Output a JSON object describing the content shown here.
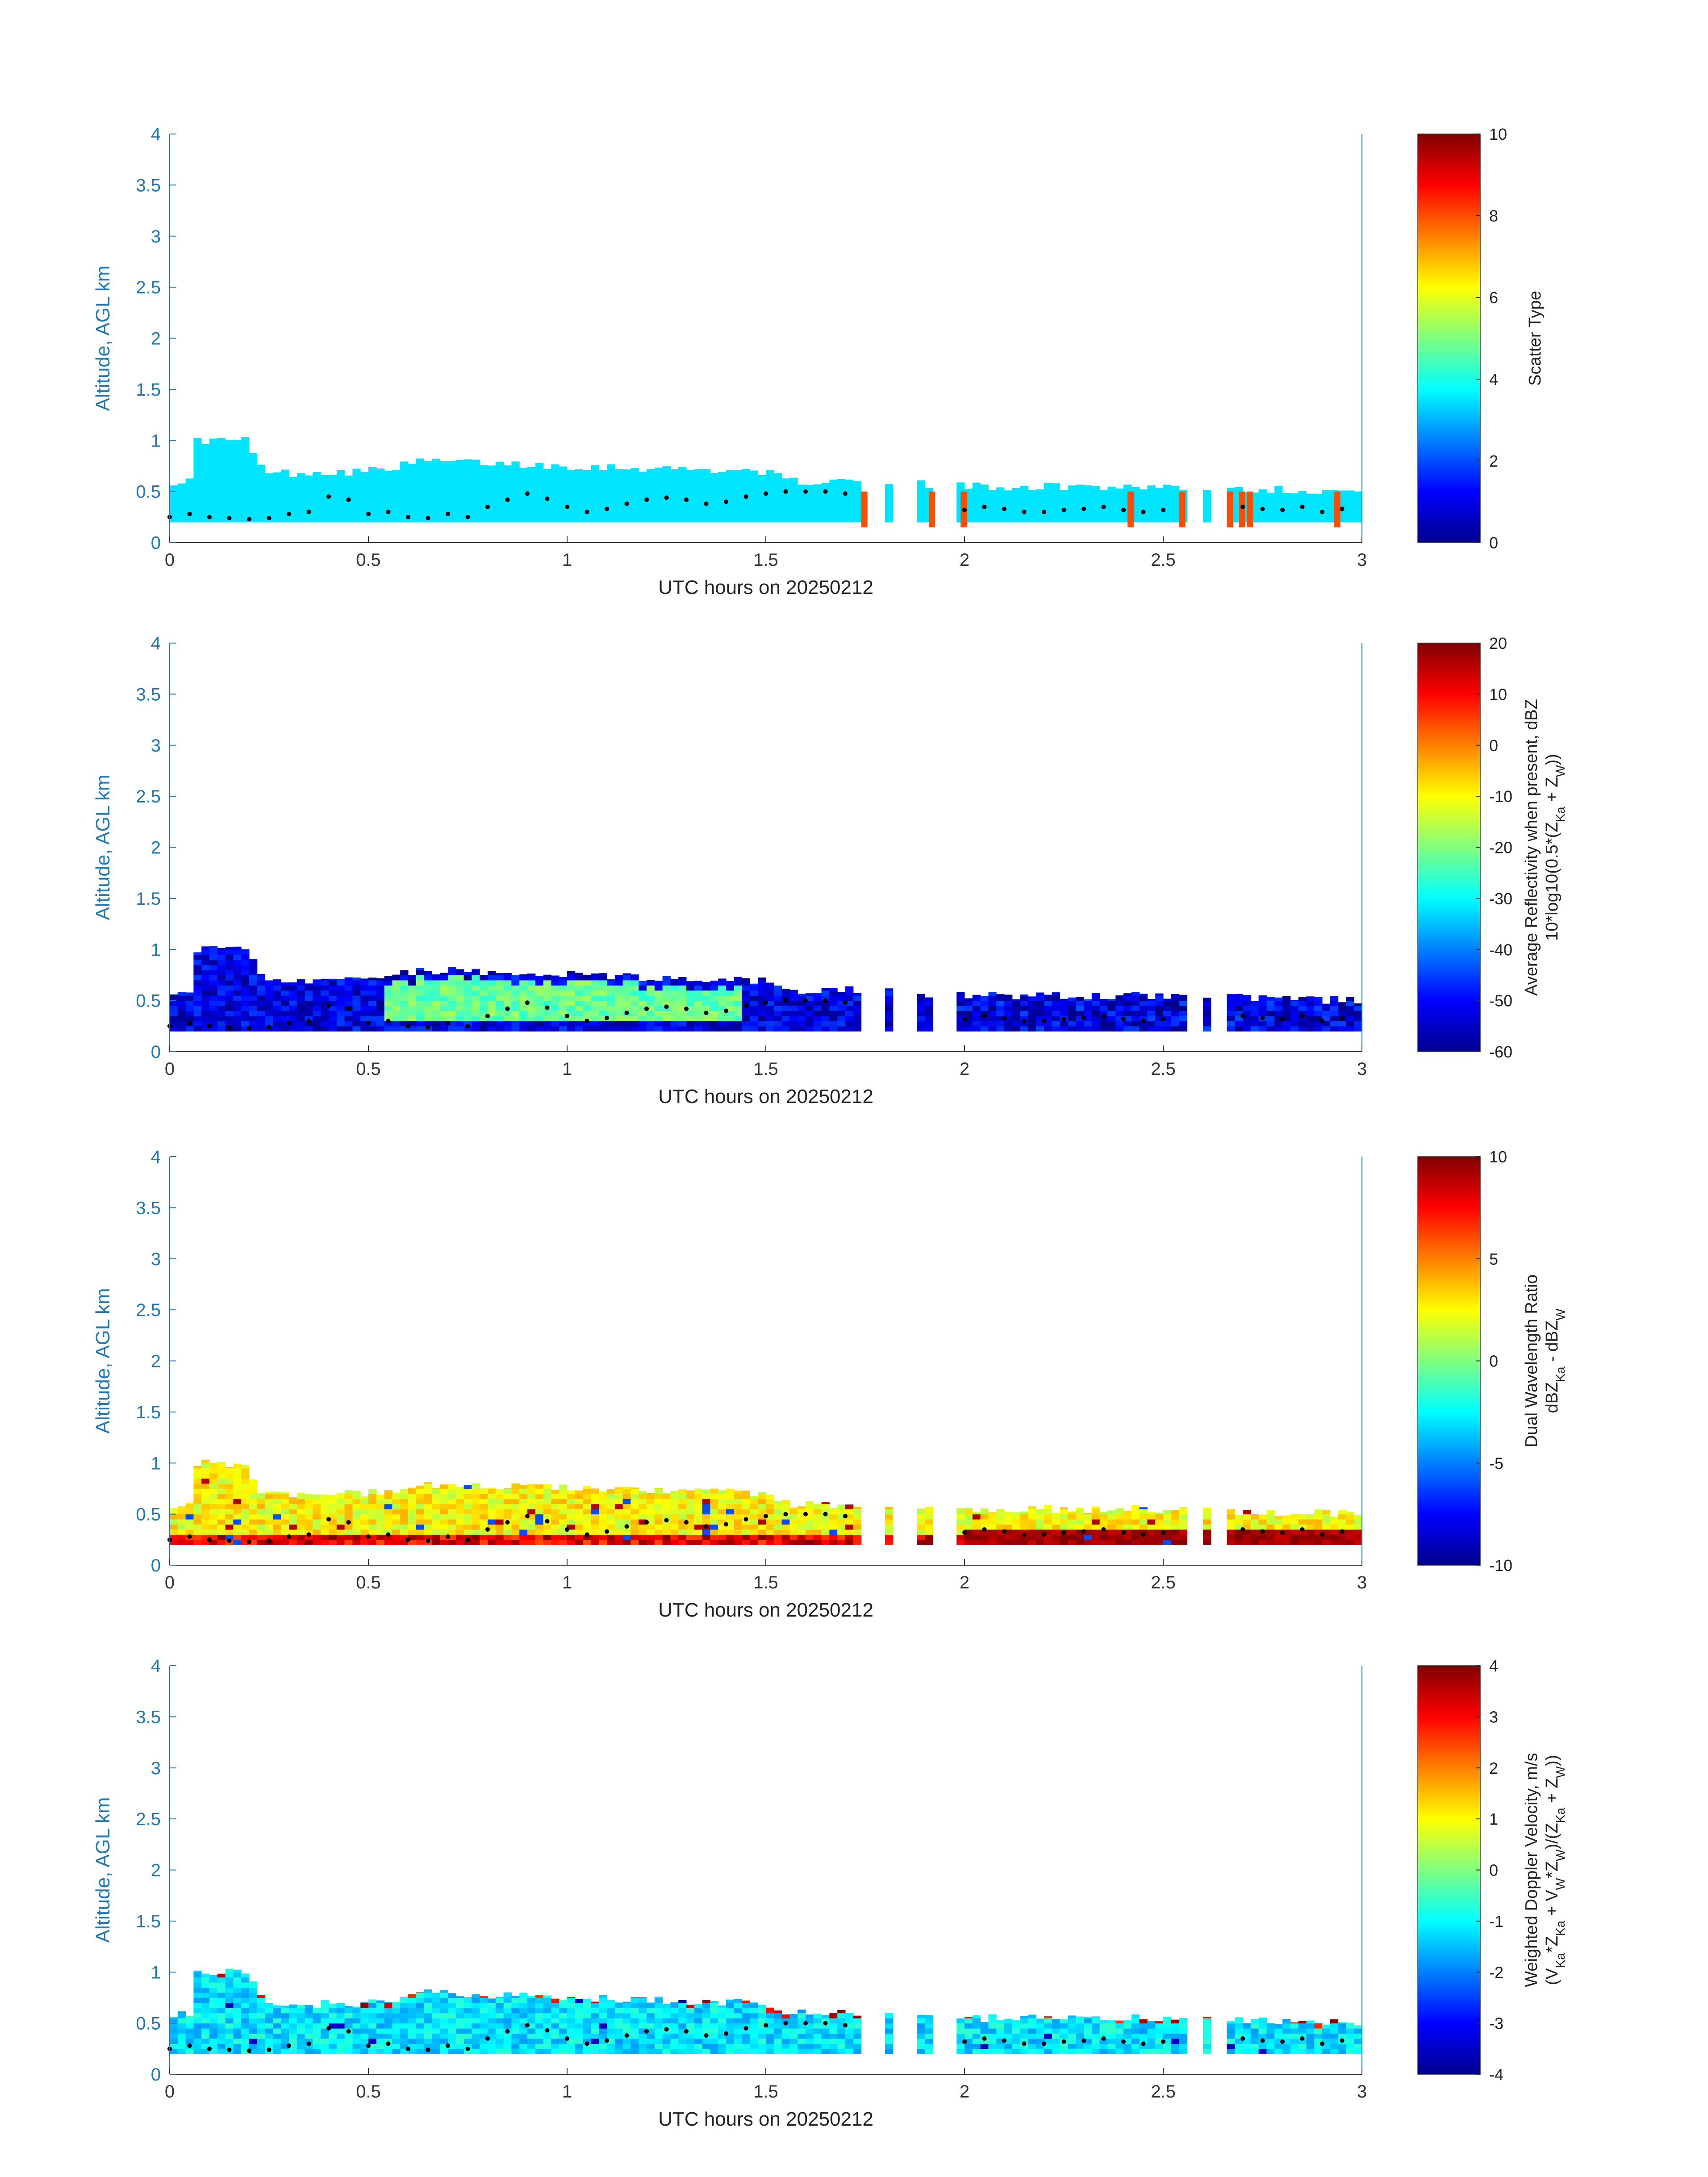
{
  "chart_data": [
    {
      "type": "heatmap",
      "xlabel": "UTC hours on 20250212",
      "ylabel": "Altitude, AGL km",
      "xlim": [
        0,
        3
      ],
      "ylim": [
        0,
        4
      ],
      "xticks": [
        "0",
        "0.5",
        "1",
        "1.5",
        "2",
        "2.5",
        "3"
      ],
      "yticks": [
        "0",
        "0.5",
        "1",
        "1.5",
        "2",
        "2.5",
        "3",
        "3.5",
        "4"
      ],
      "colorbar": {
        "label_lines": [
          "Scatter Type"
        ],
        "range": [
          0,
          10
        ],
        "ticks": [
          "0",
          "2",
          "4",
          "6",
          "8",
          "10"
        ]
      },
      "field": "scatter_type",
      "typical_value": 3.5,
      "echo_top_profile": [
        [
          0,
          0.6
        ],
        [
          0.06,
          0.6
        ],
        [
          0.07,
          1.0
        ],
        [
          0.2,
          1.0
        ],
        [
          0.22,
          0.75
        ],
        [
          0.27,
          0.68
        ],
        [
          0.5,
          0.7
        ],
        [
          0.65,
          0.8
        ],
        [
          0.8,
          0.78
        ],
        [
          1.0,
          0.75
        ],
        [
          1.5,
          0.7
        ],
        [
          1.55,
          0.6
        ],
        [
          1.73,
          0.6
        ],
        [
          2.0,
          0.55
        ],
        [
          2.5,
          0.55
        ],
        [
          3.0,
          0.5
        ]
      ],
      "gaps": [
        [
          1.74,
          1.8
        ],
        [
          1.82,
          1.88
        ],
        [
          1.93,
          1.99
        ],
        [
          2.57,
          2.6
        ],
        [
          2.63,
          2.66
        ]
      ],
      "highlights": [
        {
          "x": 1.74,
          "value": 8
        },
        {
          "x": 1.91,
          "value": 8
        },
        {
          "x": 1.99,
          "value": 8
        },
        {
          "x": 2.41,
          "value": 8
        },
        {
          "x": 2.54,
          "value": 8
        },
        {
          "x": 2.66,
          "value": 8
        },
        {
          "x": 2.69,
          "value": 8
        },
        {
          "x": 2.71,
          "value": 8
        },
        {
          "x": 2.93,
          "value": 8
        }
      ]
    },
    {
      "type": "heatmap",
      "xlabel": "UTC hours on 20250212",
      "ylabel": "Altitude, AGL km",
      "xlim": [
        0,
        3
      ],
      "ylim": [
        0,
        4
      ],
      "xticks": [
        "0",
        "0.5",
        "1",
        "1.5",
        "2",
        "2.5",
        "3"
      ],
      "yticks": [
        "0",
        "0.5",
        "1",
        "1.5",
        "2",
        "2.5",
        "3",
        "3.5",
        "4"
      ],
      "colorbar": {
        "label_lines": [
          "Average Reflectivity when present, dBZ",
          "10*log10(0.5*(Z",
          "Ka",
          " + Z",
          "W",
          "))"
        ],
        "range": [
          -60,
          20
        ],
        "ticks": [
          "-60",
          "-50",
          "-40",
          "-30",
          "-20",
          "-10",
          "0",
          "10",
          "20"
        ]
      },
      "field": "reflectivity",
      "core_window": [
        0.55,
        1.45
      ],
      "core_value": -22,
      "edge_value": -52
    },
    {
      "type": "heatmap",
      "xlabel": "UTC hours on 20250212",
      "ylabel": "Altitude, AGL km",
      "xlim": [
        0,
        3
      ],
      "ylim": [
        0,
        4
      ],
      "xticks": [
        "0",
        "0.5",
        "1",
        "1.5",
        "2",
        "2.5",
        "3"
      ],
      "yticks": [
        "0",
        "0.5",
        "1",
        "1.5",
        "2",
        "2.5",
        "3",
        "3.5",
        "4"
      ],
      "colorbar": {
        "label_lines": [
          "Dual Wavelength Ratio",
          "dBZ",
          "Ka",
          " - dBZ",
          "W"
        ],
        "range": [
          -10,
          10
        ],
        "ticks": [
          "-10",
          "-5",
          "0",
          "5",
          "10"
        ]
      },
      "field": "dwr",
      "typical_value": 2.5,
      "near_surface_value": 8
    },
    {
      "type": "heatmap",
      "xlabel": "UTC hours on 20250212",
      "ylabel": "Altitude, AGL km",
      "xlim": [
        0,
        3
      ],
      "ylim": [
        0,
        4
      ],
      "xticks": [
        "0",
        "0.5",
        "1",
        "1.5",
        "2",
        "2.5",
        "3"
      ],
      "yticks": [
        "0",
        "0.5",
        "1",
        "1.5",
        "2",
        "2.5",
        "3",
        "3.5",
        "4"
      ],
      "colorbar": {
        "label_lines": [
          "Weighted Doppler Velocity, m/s",
          "(V",
          "Ka",
          "*Z",
          "Ka",
          " + V",
          "W",
          "*Z",
          "W",
          ")/(Z",
          "Ka",
          " + Z",
          "W",
          "))"
        ],
        "range": [
          -4,
          4
        ],
        "ticks": [
          "-4",
          "-3",
          "-2",
          "-1",
          "0",
          "1",
          "2",
          "3",
          "4"
        ]
      },
      "field": "velocity",
      "typical_value": -1.2
    }
  ],
  "cloud_base_points": [
    [
      0.0,
      0.25
    ],
    [
      0.05,
      0.28
    ],
    [
      0.1,
      0.25
    ],
    [
      0.15,
      0.24
    ],
    [
      0.2,
      0.23
    ],
    [
      0.25,
      0.24
    ],
    [
      0.3,
      0.28
    ],
    [
      0.35,
      0.3
    ],
    [
      0.4,
      0.45
    ],
    [
      0.45,
      0.42
    ],
    [
      0.5,
      0.28
    ],
    [
      0.55,
      0.3
    ],
    [
      0.6,
      0.25
    ],
    [
      0.65,
      0.24
    ],
    [
      0.7,
      0.28
    ],
    [
      0.75,
      0.25
    ],
    [
      0.8,
      0.35
    ],
    [
      0.85,
      0.42
    ],
    [
      0.9,
      0.48
    ],
    [
      0.95,
      0.43
    ],
    [
      1.0,
      0.35
    ],
    [
      1.05,
      0.3
    ],
    [
      1.1,
      0.33
    ],
    [
      1.15,
      0.38
    ],
    [
      1.2,
      0.42
    ],
    [
      1.25,
      0.44
    ],
    [
      1.3,
      0.42
    ],
    [
      1.35,
      0.38
    ],
    [
      1.4,
      0.4
    ],
    [
      1.45,
      0.45
    ],
    [
      1.5,
      0.48
    ],
    [
      1.55,
      0.5
    ],
    [
      1.6,
      0.5
    ],
    [
      1.65,
      0.5
    ],
    [
      1.7,
      0.48
    ],
    [
      2.0,
      0.32
    ],
    [
      2.05,
      0.35
    ],
    [
      2.1,
      0.33
    ],
    [
      2.15,
      0.3
    ],
    [
      2.2,
      0.3
    ],
    [
      2.25,
      0.32
    ],
    [
      2.3,
      0.33
    ],
    [
      2.35,
      0.35
    ],
    [
      2.4,
      0.32
    ],
    [
      2.45,
      0.3
    ],
    [
      2.5,
      0.32
    ],
    [
      2.7,
      0.35
    ],
    [
      2.75,
      0.33
    ],
    [
      2.8,
      0.32
    ],
    [
      2.85,
      0.35
    ],
    [
      2.9,
      0.3
    ],
    [
      2.95,
      0.33
    ]
  ]
}
